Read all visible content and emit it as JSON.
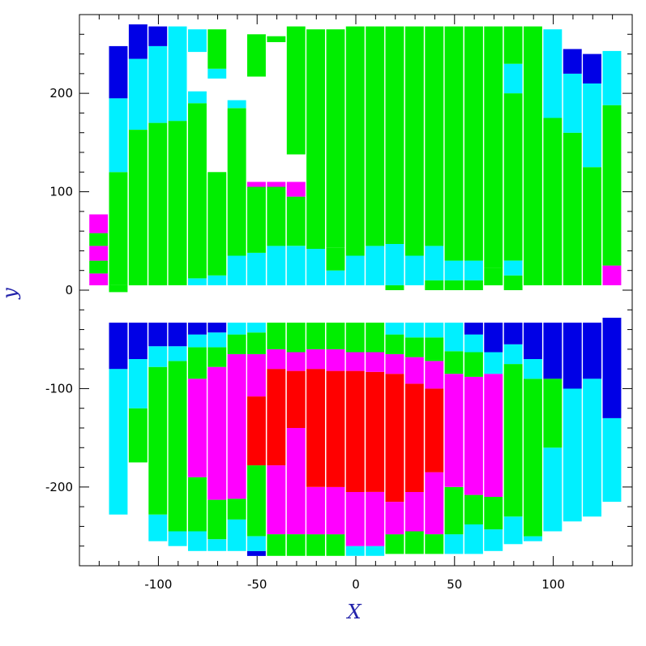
{
  "chart_data": {
    "type": "heatmap",
    "title": "",
    "xlabel": "X",
    "ylabel": "y",
    "xlim": [
      -140,
      140
    ],
    "ylim": [
      -280,
      280
    ],
    "xticks": [
      -100,
      -50,
      0,
      50,
      100
    ],
    "yticks": [
      -200,
      -100,
      0,
      100,
      200
    ],
    "xtick_labels": [
      "-100",
      "-50",
      "0",
      "50",
      "100"
    ],
    "ytick_labels": [
      "-200",
      "-100",
      "0",
      "100",
      "200"
    ],
    "grid": false,
    "axis_label_color": "#2222aa",
    "colors": {
      "blue": "#0000e6",
      "cyan": "#00f0ff",
      "green": "#00ee00",
      "magenta": "#ff00ff",
      "red": "#ff0000"
    },
    "column_width": 5,
    "columns": [
      {
        "x": -130,
        "segments": [
          [
            5,
            17,
            "magenta"
          ],
          [
            17,
            30,
            "green"
          ],
          [
            30,
            45,
            "magenta"
          ],
          [
            45,
            58,
            "green"
          ],
          [
            58,
            77,
            "magenta"
          ]
        ]
      },
      {
        "x": -120,
        "segments": [
          [
            -2,
            5,
            "green"
          ],
          [
            5,
            120,
            "green"
          ],
          [
            120,
            195,
            "cyan"
          ],
          [
            195,
            248,
            "blue"
          ],
          [
            -228,
            -80,
            "cyan"
          ],
          [
            -80,
            -33,
            "blue"
          ]
        ]
      },
      {
        "x": -110,
        "segments": [
          [
            5,
            163,
            "green"
          ],
          [
            163,
            235,
            "cyan"
          ],
          [
            235,
            270,
            "blue"
          ],
          [
            -175,
            -120,
            "green"
          ],
          [
            -120,
            -70,
            "cyan"
          ],
          [
            -70,
            -33,
            "blue"
          ]
        ]
      },
      {
        "x": -100,
        "segments": [
          [
            5,
            170,
            "green"
          ],
          [
            170,
            248,
            "cyan"
          ],
          [
            248,
            268,
            "blue"
          ],
          [
            -255,
            -228,
            "cyan"
          ],
          [
            -228,
            -78,
            "green"
          ],
          [
            -78,
            -57,
            "cyan"
          ],
          [
            -57,
            -33,
            "blue"
          ]
        ]
      },
      {
        "x": -90,
        "segments": [
          [
            5,
            172,
            "green"
          ],
          [
            172,
            268,
            "cyan"
          ],
          [
            -260,
            -245,
            "cyan"
          ],
          [
            -245,
            -72,
            "green"
          ],
          [
            -72,
            -57,
            "cyan"
          ],
          [
            -57,
            -33,
            "blue"
          ]
        ]
      },
      {
        "x": -80,
        "segments": [
          [
            5,
            12,
            "cyan"
          ],
          [
            12,
            190,
            "green"
          ],
          [
            190,
            202,
            "cyan"
          ],
          [
            242,
            265,
            "cyan"
          ],
          [
            -265,
            -245,
            "cyan"
          ],
          [
            -245,
            -190,
            "green"
          ],
          [
            -190,
            -90,
            "magenta"
          ],
          [
            -90,
            -58,
            "green"
          ],
          [
            -58,
            -45,
            "cyan"
          ],
          [
            -45,
            -33,
            "blue"
          ]
        ]
      },
      {
        "x": -70,
        "segments": [
          [
            5,
            15,
            "cyan"
          ],
          [
            15,
            120,
            "green"
          ],
          [
            215,
            225,
            "cyan"
          ],
          [
            225,
            265,
            "green"
          ],
          [
            -265,
            -253,
            "cyan"
          ],
          [
            -253,
            -213,
            "green"
          ],
          [
            -213,
            -78,
            "magenta"
          ],
          [
            -78,
            -58,
            "green"
          ],
          [
            -58,
            -43,
            "cyan"
          ],
          [
            -43,
            -33,
            "blue"
          ]
        ]
      },
      {
        "x": -60,
        "segments": [
          [
            5,
            35,
            "cyan"
          ],
          [
            35,
            185,
            "green"
          ],
          [
            185,
            193,
            "cyan"
          ],
          [
            -265,
            -233,
            "cyan"
          ],
          [
            -233,
            -212,
            "green"
          ],
          [
            -212,
            -65,
            "magenta"
          ],
          [
            -65,
            -45,
            "green"
          ],
          [
            -45,
            -33,
            "cyan"
          ]
        ]
      },
      {
        "x": -50,
        "segments": [
          [
            5,
            38,
            "cyan"
          ],
          [
            38,
            105,
            "green"
          ],
          [
            105,
            110,
            "magenta"
          ],
          [
            217,
            260,
            "green"
          ],
          [
            -270,
            -265,
            "blue"
          ],
          [
            -265,
            -250,
            "cyan"
          ],
          [
            -250,
            -178,
            "green"
          ],
          [
            -178,
            -108,
            "red"
          ],
          [
            -108,
            -65,
            "magenta"
          ],
          [
            -65,
            -43,
            "green"
          ],
          [
            -43,
            -33,
            "cyan"
          ]
        ]
      },
      {
        "x": -40,
        "segments": [
          [
            5,
            45,
            "cyan"
          ],
          [
            45,
            105,
            "green"
          ],
          [
            105,
            110,
            "magenta"
          ],
          [
            252,
            258,
            "green"
          ],
          [
            -270,
            -248,
            "green"
          ],
          [
            -248,
            -178,
            "magenta"
          ],
          [
            -178,
            -80,
            "red"
          ],
          [
            -80,
            -60,
            "magenta"
          ],
          [
            -60,
            -33,
            "green"
          ]
        ]
      },
      {
        "x": -30,
        "segments": [
          [
            5,
            45,
            "cyan"
          ],
          [
            45,
            95,
            "green"
          ],
          [
            95,
            110,
            "magenta"
          ],
          [
            138,
            268,
            "green"
          ],
          [
            -270,
            -248,
            "green"
          ],
          [
            -248,
            -140,
            "magenta"
          ],
          [
            -140,
            -82,
            "red"
          ],
          [
            -82,
            -63,
            "magenta"
          ],
          [
            -63,
            -33,
            "green"
          ]
        ]
      },
      {
        "x": -20,
        "segments": [
          [
            5,
            42,
            "cyan"
          ],
          [
            42,
            265,
            "green"
          ],
          [
            -270,
            -248,
            "green"
          ],
          [
            -248,
            -200,
            "magenta"
          ],
          [
            -200,
            -80,
            "red"
          ],
          [
            -80,
            -60,
            "magenta"
          ],
          [
            -60,
            -33,
            "green"
          ]
        ]
      },
      {
        "x": -10,
        "segments": [
          [
            5,
            20,
            "cyan"
          ],
          [
            20,
            43,
            "green"
          ],
          [
            43,
            265,
            "green"
          ],
          [
            -270,
            -248,
            "green"
          ],
          [
            -248,
            -200,
            "magenta"
          ],
          [
            -200,
            -82,
            "red"
          ],
          [
            -82,
            -60,
            "magenta"
          ],
          [
            -60,
            -33,
            "green"
          ]
        ]
      },
      {
        "x": 0,
        "segments": [
          [
            5,
            35,
            "cyan"
          ],
          [
            35,
            268,
            "green"
          ],
          [
            -270,
            -260,
            "cyan"
          ],
          [
            -260,
            -205,
            "magenta"
          ],
          [
            -205,
            -82,
            "red"
          ],
          [
            -82,
            -63,
            "magenta"
          ],
          [
            -63,
            -33,
            "green"
          ]
        ]
      },
      {
        "x": 10,
        "segments": [
          [
            5,
            45,
            "cyan"
          ],
          [
            45,
            268,
            "green"
          ],
          [
            -270,
            -260,
            "cyan"
          ],
          [
            -260,
            -205,
            "magenta"
          ],
          [
            -205,
            -83,
            "red"
          ],
          [
            -83,
            -63,
            "magenta"
          ],
          [
            -63,
            -33,
            "green"
          ]
        ]
      },
      {
        "x": 20,
        "segments": [
          [
            0,
            5,
            "green"
          ],
          [
            5,
            47,
            "cyan"
          ],
          [
            47,
            268,
            "green"
          ],
          [
            -268,
            -248,
            "green"
          ],
          [
            -248,
            -215,
            "magenta"
          ],
          [
            -215,
            -85,
            "red"
          ],
          [
            -85,
            -65,
            "magenta"
          ],
          [
            -65,
            -45,
            "green"
          ],
          [
            -45,
            -33,
            "cyan"
          ]
        ]
      },
      {
        "x": 30,
        "segments": [
          [
            5,
            35,
            "cyan"
          ],
          [
            35,
            268,
            "green"
          ],
          [
            -268,
            -245,
            "green"
          ],
          [
            -245,
            -205,
            "magenta"
          ],
          [
            -205,
            -95,
            "red"
          ],
          [
            -95,
            -68,
            "magenta"
          ],
          [
            -68,
            -48,
            "green"
          ],
          [
            -48,
            -33,
            "cyan"
          ]
        ]
      },
      {
        "x": 40,
        "segments": [
          [
            0,
            10,
            "green"
          ],
          [
            10,
            45,
            "cyan"
          ],
          [
            45,
            268,
            "green"
          ],
          [
            -268,
            -248,
            "green"
          ],
          [
            -248,
            -185,
            "magenta"
          ],
          [
            -185,
            -100,
            "red"
          ],
          [
            -100,
            -72,
            "magenta"
          ],
          [
            -72,
            -48,
            "green"
          ],
          [
            -48,
            -33,
            "cyan"
          ]
        ]
      },
      {
        "x": 50,
        "segments": [
          [
            0,
            10,
            "green"
          ],
          [
            10,
            30,
            "cyan"
          ],
          [
            30,
            268,
            "green"
          ],
          [
            -268,
            -248,
            "cyan"
          ],
          [
            -248,
            -200,
            "green"
          ],
          [
            -200,
            -85,
            "magenta"
          ],
          [
            -85,
            -62,
            "green"
          ],
          [
            -62,
            -33,
            "cyan"
          ]
        ]
      },
      {
        "x": 60,
        "segments": [
          [
            0,
            10,
            "green"
          ],
          [
            10,
            30,
            "cyan"
          ],
          [
            30,
            268,
            "green"
          ],
          [
            -268,
            -238,
            "cyan"
          ],
          [
            -238,
            -208,
            "green"
          ],
          [
            -208,
            -88,
            "magenta"
          ],
          [
            -88,
            -63,
            "green"
          ],
          [
            -63,
            -45,
            "cyan"
          ],
          [
            -45,
            -33,
            "blue"
          ]
        ]
      },
      {
        "x": 70,
        "segments": [
          [
            5,
            23,
            "green"
          ],
          [
            23,
            268,
            "green"
          ],
          [
            -265,
            -243,
            "cyan"
          ],
          [
            -243,
            -210,
            "green"
          ],
          [
            -210,
            -85,
            "magenta"
          ],
          [
            -85,
            -63,
            "cyan"
          ],
          [
            -63,
            -33,
            "blue"
          ]
        ]
      },
      {
        "x": 80,
        "segments": [
          [
            0,
            15,
            "green"
          ],
          [
            15,
            30,
            "cyan"
          ],
          [
            30,
            200,
            "green"
          ],
          [
            200,
            230,
            "cyan"
          ],
          [
            230,
            268,
            "green"
          ],
          [
            -258,
            -230,
            "cyan"
          ],
          [
            -230,
            -75,
            "green"
          ],
          [
            -75,
            -55,
            "cyan"
          ],
          [
            -55,
            -33,
            "blue"
          ]
        ]
      },
      {
        "x": 90,
        "segments": [
          [
            5,
            268,
            "green"
          ],
          [
            -255,
            -250,
            "cyan"
          ],
          [
            -250,
            -90,
            "green"
          ],
          [
            -90,
            -70,
            "cyan"
          ],
          [
            -70,
            -33,
            "blue"
          ]
        ]
      },
      {
        "x": 100,
        "segments": [
          [
            5,
            175,
            "green"
          ],
          [
            175,
            265,
            "cyan"
          ],
          [
            -245,
            -160,
            "cyan"
          ],
          [
            -160,
            -90,
            "green"
          ],
          [
            -90,
            -33,
            "blue"
          ]
        ]
      },
      {
        "x": 110,
        "segments": [
          [
            5,
            160,
            "green"
          ],
          [
            160,
            220,
            "cyan"
          ],
          [
            220,
            245,
            "blue"
          ],
          [
            -235,
            -100,
            "cyan"
          ],
          [
            -100,
            -33,
            "blue"
          ]
        ]
      },
      {
        "x": 120,
        "segments": [
          [
            5,
            125,
            "green"
          ],
          [
            125,
            210,
            "cyan"
          ],
          [
            210,
            240,
            "blue"
          ],
          [
            -230,
            -90,
            "cyan"
          ],
          [
            -90,
            -33,
            "blue"
          ]
        ]
      },
      {
        "x": 130,
        "segments": [
          [
            5,
            25,
            "magenta"
          ],
          [
            25,
            188,
            "green"
          ],
          [
            188,
            243,
            "cyan"
          ],
          [
            -215,
            -130,
            "cyan"
          ],
          [
            -130,
            -28,
            "blue"
          ]
        ]
      }
    ]
  }
}
